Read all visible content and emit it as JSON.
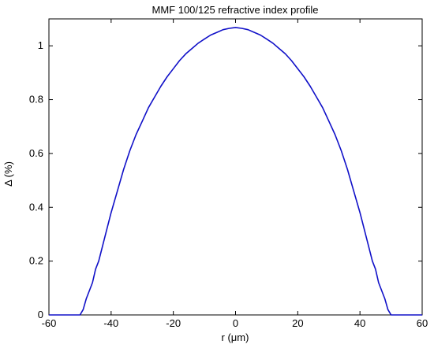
{
  "chart_data": {
    "type": "line",
    "title": "MMF 100/125 refractive index profile",
    "xlabel": "r (μm)",
    "ylabel": "Δ (%)",
    "xlim": [
      -60,
      60
    ],
    "ylim": [
      0,
      1.1
    ],
    "grid": false,
    "xticks": [
      -60,
      -40,
      -20,
      0,
      20,
      40,
      60
    ],
    "yticks": [
      0,
      0.2,
      0.4,
      0.6,
      0.8,
      1
    ],
    "xtick_labels": [
      "-60",
      "-40",
      "-20",
      "0",
      "20",
      "40",
      "60"
    ],
    "ytick_labels": [
      "0",
      "0.2",
      "0.4",
      "0.6",
      "0.8",
      "1"
    ],
    "series": [
      {
        "color": "#1010c8",
        "x": [
          -60,
          -50,
          -49,
          -48,
          -46,
          -45,
          -44,
          -42,
          -40,
          -38,
          -36,
          -34,
          -32,
          -30,
          -28,
          -26,
          -24,
          -22,
          -20,
          -18,
          -16,
          -14,
          -12,
          -10,
          -8,
          -6,
          -4,
          -2,
          0,
          2,
          4,
          6,
          8,
          10,
          12,
          14,
          16,
          18,
          20,
          22,
          24,
          26,
          28,
          30,
          32,
          34,
          36,
          38,
          40,
          42,
          44,
          45,
          46,
          48,
          49,
          50,
          60
        ],
        "y": [
          0,
          0,
          0.02,
          0.06,
          0.12,
          0.17,
          0.2,
          0.29,
          0.38,
          0.46,
          0.54,
          0.61,
          0.67,
          0.72,
          0.77,
          0.81,
          0.85,
          0.885,
          0.915,
          0.945,
          0.97,
          0.99,
          1.01,
          1.025,
          1.04,
          1.05,
          1.06,
          1.065,
          1.068,
          1.065,
          1.06,
          1.05,
          1.04,
          1.025,
          1.01,
          0.99,
          0.97,
          0.945,
          0.915,
          0.885,
          0.85,
          0.81,
          0.77,
          0.72,
          0.67,
          0.61,
          0.54,
          0.46,
          0.38,
          0.29,
          0.2,
          0.17,
          0.12,
          0.06,
          0.02,
          0,
          0
        ]
      }
    ]
  }
}
